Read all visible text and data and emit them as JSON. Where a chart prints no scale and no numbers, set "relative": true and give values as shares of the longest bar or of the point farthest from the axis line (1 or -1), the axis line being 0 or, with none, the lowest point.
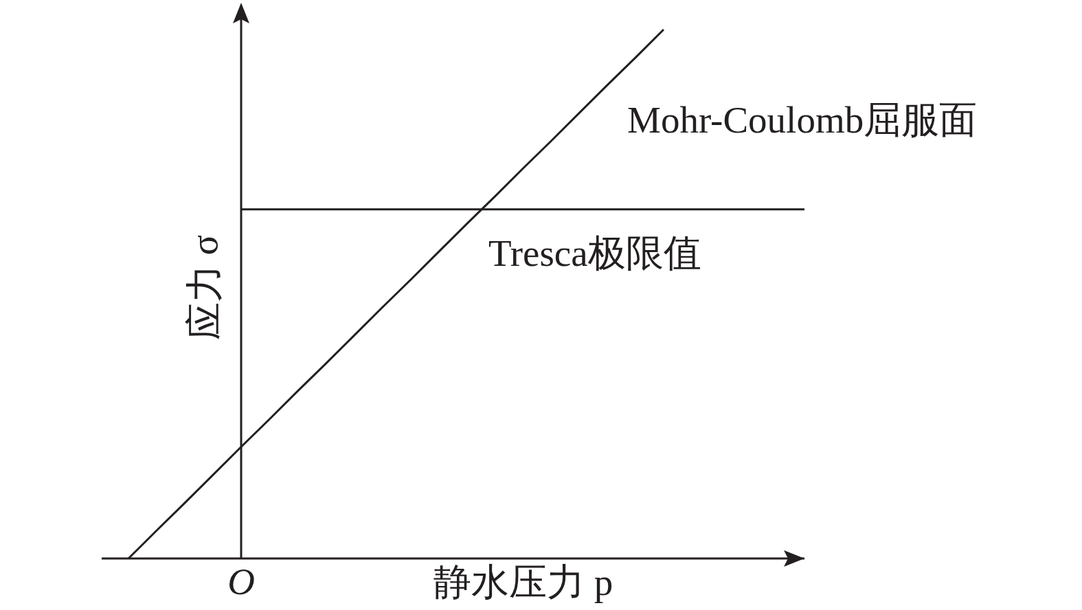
{
  "chart_data": {
    "type": "line",
    "relative": true,
    "xlabel": "静水压力 p",
    "ylabel": "应力 σ",
    "line_style": "solid",
    "categories": [
      null,
      null,
      null,
      null,
      null,
      null,
      null,
      null,
      null,
      null,
      null,
      null,
      null,
      null,
      null,
      null,
      null,
      null,
      null,
      null,
      null,
      null,
      null,
      null,
      null
    ],
    "series": [
      {
        "name": "Mohr-Coulomb屈服面",
        "color": "#231f20",
        "values": [
          0,
          0.053,
          0.105,
          0.158,
          0.211,
          0.263,
          0.316,
          0.368,
          0.421,
          0.474,
          0.526,
          0.579,
          0.632,
          0.684,
          0.737,
          0.789,
          0.842,
          0.895,
          0.947,
          1,
          null,
          null,
          null,
          null,
          null
        ]
      },
      {
        "name": "Tresca极限值",
        "color": "#231f20",
        "values": [
          null,
          null,
          null,
          null,
          0.66,
          0.66,
          0.66,
          0.66,
          0.66,
          0.66,
          0.66,
          0.66,
          0.66,
          0.66,
          0.66,
          0.66,
          0.66,
          0.66,
          0.66,
          0.66,
          0.66,
          0.66,
          0.66,
          0.66,
          0.66
        ]
      }
    ],
    "annotations": [
      "O"
    ]
  }
}
